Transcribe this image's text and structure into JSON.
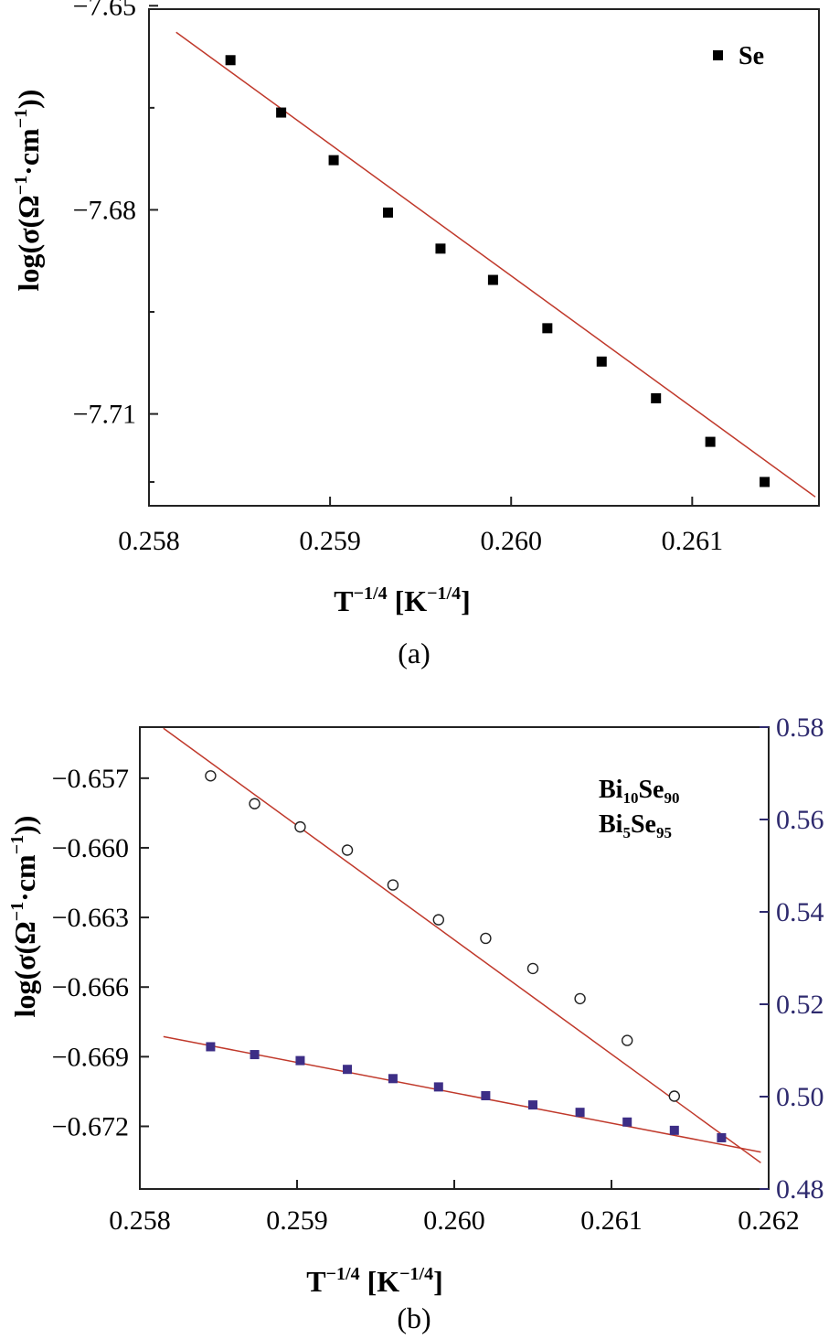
{
  "colors": {
    "frame": "#222222",
    "fit_line": "#c0392b",
    "right_axis": "#2e2a6e",
    "marker_filled": "#000000",
    "marker_purple": "#3d2e86"
  },
  "chart_data": [
    {
      "type": "scatter",
      "panel_label": "(a)",
      "xlabel": {
        "main": "T",
        "sup1": "−1/4",
        "mid": " [K",
        "sup2": "−1/4",
        "end": "]"
      },
      "ylabel": {
        "prefix": "log(σ(Ω",
        "sup1": "−1",
        "mid": "·cm",
        "sup2": "−1",
        "end": "))"
      },
      "xlim": [
        0.258,
        0.2617
      ],
      "ylim": [
        -7.7235,
        -7.6505
      ],
      "xticks": [
        0.258,
        0.259,
        0.26,
        0.261
      ],
      "xtick_labels": [
        "0.258",
        "0.259",
        "0.260",
        "0.261"
      ],
      "yticks": [
        -7.65,
        -7.68,
        -7.71
      ],
      "ytick_labels": [
        "−7.65",
        "−7.68",
        "−7.71"
      ],
      "minor_yticks": [
        -7.665,
        -7.695,
        -7.72
      ],
      "legend_position": "top-right",
      "series": [
        {
          "name": "Se",
          "marker": "filled-square",
          "x": [
            0.25845,
            0.25873,
            0.25902,
            0.25932,
            0.25961,
            0.2599,
            0.2602,
            0.2605,
            0.2608,
            0.2611,
            0.2614
          ],
          "y": [
            -7.658,
            -7.6657,
            -7.6727,
            -7.6804,
            -7.6857,
            -7.6903,
            -7.6974,
            -7.7023,
            -7.7077,
            -7.7141,
            -7.72
          ]
        }
      ],
      "fit_lines": [
        {
          "x": [
            0.25815,
            0.26168
          ],
          "y": [
            -7.6539,
            -7.7222
          ]
        }
      ]
    },
    {
      "type": "scatter",
      "panel_label": "(b)",
      "xlabel": {
        "main": "T",
        "sup1": "−1/4",
        "mid": " [K",
        "sup2": "−1/4",
        "end": "]"
      },
      "ylabel": {
        "prefix": "log(σ(Ω",
        "sup1": "−1",
        "mid": "·cm",
        "sup2": "−1",
        "end": "))"
      },
      "xlim": [
        0.258,
        0.262
      ],
      "ylim": [
        -0.6747,
        -0.6548
      ],
      "xticks": [
        0.258,
        0.259,
        0.26,
        0.261,
        0.262
      ],
      "xtick_labels": [
        "0.258",
        "0.259",
        "0.260",
        "0.261",
        "0.262"
      ],
      "yticks": [
        -0.657,
        -0.66,
        -0.663,
        -0.666,
        -0.669,
        -0.672
      ],
      "ytick_labels": [
        "−0.657",
        "−0.660",
        "−0.663",
        "−0.666",
        "−0.669",
        "−0.672"
      ],
      "y2lim": [
        0.48,
        0.58
      ],
      "y2ticks": [
        0.48,
        0.5,
        0.52,
        0.54,
        0.56,
        0.58
      ],
      "y2tick_labels": [
        "0.48",
        "0.50",
        "0.52",
        "0.54",
        "0.56",
        "0.58"
      ],
      "legend_position": "top-right",
      "legend": [
        {
          "base1": "Bi",
          "sub1": "10",
          "base2": "Se",
          "sub2": "90"
        },
        {
          "base1": "Bi",
          "sub1": "5",
          "base2": "Se",
          "sub2": "95"
        }
      ],
      "series": [
        {
          "name": "Bi10Se90",
          "axis": "left",
          "marker": "open-circle",
          "x": [
            0.25845,
            0.25873,
            0.25902,
            0.25932,
            0.25961,
            0.2599,
            0.2602,
            0.2605,
            0.2608,
            0.2611,
            0.2614,
            0.2617
          ],
          "y": [
            -0.6569,
            -0.6581,
            -0.6591,
            -0.6601,
            -0.6616,
            -0.6631,
            -0.6639,
            -0.6652,
            -0.6665,
            -0.6683,
            -0.6707,
            -0.6726
          ]
        },
        {
          "name": "Bi5Se95",
          "axis": "right",
          "marker": "filled-square",
          "x": [
            0.25845,
            0.25873,
            0.25902,
            0.25932,
            0.25961,
            0.2599,
            0.2602,
            0.2605,
            0.2608,
            0.2611,
            0.2614,
            0.2617
          ],
          "y": [
            0.5108,
            0.5091,
            0.5078,
            0.5059,
            0.5039,
            0.5021,
            0.5002,
            0.4982,
            0.4966,
            0.4945,
            0.4927,
            0.4911
          ]
        }
      ],
      "fit_lines": [
        {
          "axis": "left",
          "x": [
            0.25815,
            0.26195
          ],
          "y": [
            -0.65485,
            -0.67357
          ]
        },
        {
          "axis": "right",
          "x": [
            0.25815,
            0.26195
          ],
          "y": [
            0.513,
            0.488
          ]
        }
      ]
    }
  ]
}
